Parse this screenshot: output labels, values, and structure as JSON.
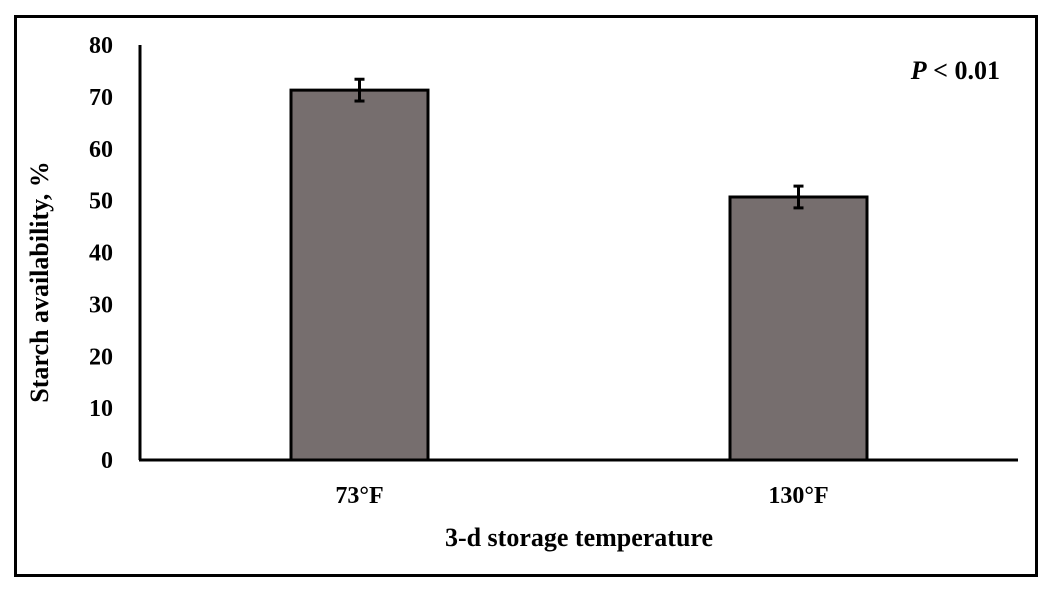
{
  "chart_data": {
    "type": "bar",
    "categories": [
      "73°F",
      "130°F"
    ],
    "values": [
      71.3,
      50.7
    ],
    "errors": [
      2.1,
      2.1
    ],
    "xlabel": "3-d storage temperature",
    "ylabel": "Starch availability, %",
    "ylim": [
      0,
      80
    ],
    "yticks": [
      0,
      10,
      20,
      30,
      40,
      50,
      60,
      70,
      80
    ],
    "grid": false,
    "annotation": {
      "prefix": "P",
      "text": " < 0.01",
      "position": "top-right"
    },
    "colors": {
      "bar_fill": "#766e6e",
      "bar_stroke": "#000000",
      "axis": "#000000"
    }
  }
}
